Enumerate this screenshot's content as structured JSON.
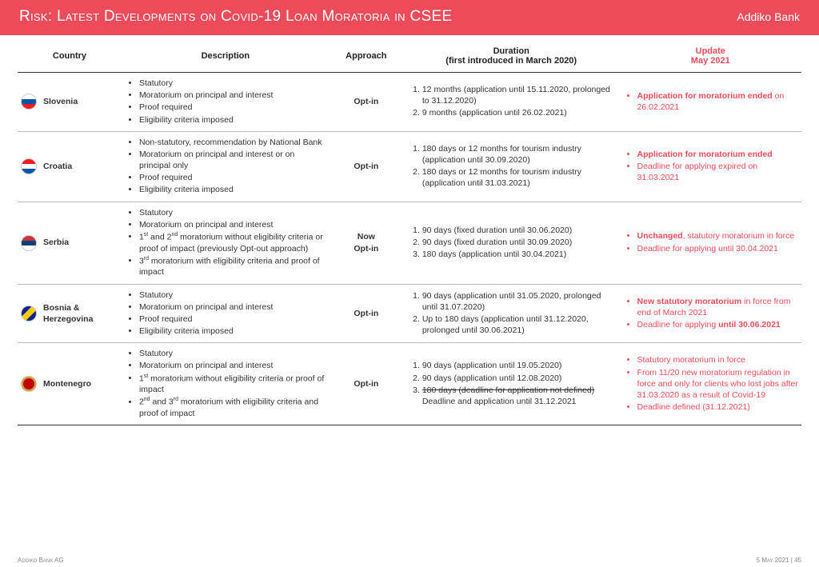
{
  "header": {
    "title": "Risk: Latest Developments on Covid-19 Loan Moratoria in CSEE",
    "brand": "Addiko Bank"
  },
  "columns": {
    "country": "Country",
    "description": "Description",
    "approach": "Approach",
    "duration": "Duration\n(first introduced in March 2020)",
    "update": "Update\nMay 2021"
  },
  "col_widths": {
    "country": 120,
    "desc": 240,
    "appr": 85,
    "dur": 250,
    "upd": 210
  },
  "accent_color": "#ee4b5a",
  "rows": [
    {
      "country": "Slovenia",
      "flag_class": "flag-slovenia",
      "description": [
        "Statutory",
        "Moratorium on principal and interest",
        "Proof required",
        "Eligibility criteria imposed"
      ],
      "approach": "Opt-in",
      "duration": [
        "12 months (application until 15.11.2020, prolonged to 31.12.2020)",
        "9 months (application until 26.02.2021)"
      ],
      "update_html": "<li><b>Application for moratorium ended</b> on 26.02.2021</li>"
    },
    {
      "country": "Croatia",
      "flag_class": "flag-croatia",
      "description": [
        "Non-statutory, recommendation by National Bank",
        "Moratorium on principal and interest or on principal only",
        "Proof required",
        "Eligibility criteria imposed"
      ],
      "approach": "Opt-in",
      "duration": [
        "180 days or 12 months for tourism industry (application until 30.09.2020)",
        "180 days or 12 months for tourism industry (application until 31.03.2021)"
      ],
      "update_html": "<li><b>Application for moratorium ended</b></li><li>Deadline for applying expired on 31.03.2021</li>"
    },
    {
      "country": "Serbia",
      "flag_class": "flag-serbia",
      "description_html": "<li>Statutory</li><li>Moratorium on principal and interest</li><li>1<sup>st</sup> and 2<sup>nd</sup> moratorium without eligibility criteria or proof of impact (previously Opt-out approach)</li><li>3<sup>rd</sup> moratorium with eligibility criteria and proof of impact</li>",
      "approach": "Now Opt-in",
      "duration": [
        "90 days (fixed duration until 30.06.2020)",
        "90 days (fixed duration until 30.09.2020)",
        "180 days (application until 30.04.2021)"
      ],
      "update_html": "<li><b>Unchanged</b>, statutory moratorium in force</li><li>Deadline for applying until 30.04.2021</li>"
    },
    {
      "country": "Bosnia & Herzegovina",
      "flag_class": "flag-bosnia",
      "description": [
        "Statutory",
        "Moratorium on principal and interest",
        "Proof required",
        "Eligibility criteria imposed"
      ],
      "approach": "Opt-in",
      "duration": [
        "90 days (application until 31.05.2020, prolonged until 31.07.2020)",
        "Up to 180 days (application until 31.12.2020, prolonged until 30.06.2021)"
      ],
      "update_html": "<li><b>New statutory moratorium</b> in force from end of March 2021</li><li>Deadline for applying <b>until 30.06.2021</b></li>"
    },
    {
      "country": "Montenegro",
      "flag_class": "flag-montenegro",
      "description_html": "<li>Statutory</li><li>Moratorium on principal and interest</li><li>1<sup>st</sup> moratorium without eligibility criteria or proof of impact</li><li>2<sup>nd</sup> and 3<sup>rd</sup> moratorium with eligibility criteria and proof of impact</li>",
      "approach": "Opt-in",
      "duration_html": "<li>90 days (application until 19.05.2020)</li><li>90 days (application until 12.08.2020)</li><li><span class=\"strike\">180 days (deadline for application not defined)</span><br>Deadline and application until 31.12.2021</li>",
      "update_html": "<li>Statutory moratorium in force</li><li>From 11/20 new moratorium regulation in force and only for clients who lost jobs after 31.03.2020 as a result of Covid-19</li><li>Deadline defined (31.12.2021)</li>"
    }
  ],
  "footer": {
    "left": "Addiko Bank AG",
    "right": "5 May 2021 | 45"
  }
}
